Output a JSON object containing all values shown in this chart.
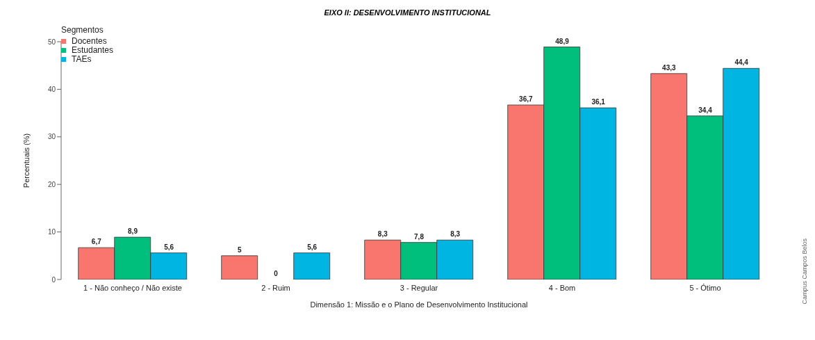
{
  "chart_data": {
    "type": "bar",
    "title": "EIXO II: DESENVOLVIMENTO INSTITUCIONAL",
    "xlabel": "Dimensão 1: Missão e o Plano de Desenvolvimento Institucional",
    "ylabel": "Percentuais (%)",
    "legend_title": "Segmentos",
    "categories": [
      "1 - Não conheço / Não existe",
      "2 - Ruim",
      "3 - Regular",
      "4 - Bom",
      "5 - Ótimo"
    ],
    "series": [
      {
        "name": "Docentes",
        "color": "#f8766d",
        "values": [
          6.7,
          5,
          8.3,
          36.7,
          43.3
        ],
        "value_labels": [
          "6,7",
          "5",
          "8,3",
          "36,7",
          "43,3"
        ]
      },
      {
        "name": "Estudantes",
        "color": "#00bf7d",
        "values": [
          8.9,
          0,
          7.8,
          48.9,
          34.4
        ],
        "value_labels": [
          "8,9",
          "0",
          "7,8",
          "48,9",
          "34,4"
        ]
      },
      {
        "name": "TAEs",
        "color": "#00b5e2",
        "values": [
          5.6,
          5.6,
          8.3,
          36.1,
          44.4
        ],
        "value_labels": [
          "5,6",
          "5,6",
          "8,3",
          "36,1",
          "44,4"
        ]
      }
    ],
    "ylim": [
      0,
      50
    ],
    "yticks": [
      0,
      10,
      20,
      30,
      40,
      50
    ],
    "grid": false,
    "legend": "top left",
    "annotations": [
      "Campus Campos Belos"
    ]
  }
}
